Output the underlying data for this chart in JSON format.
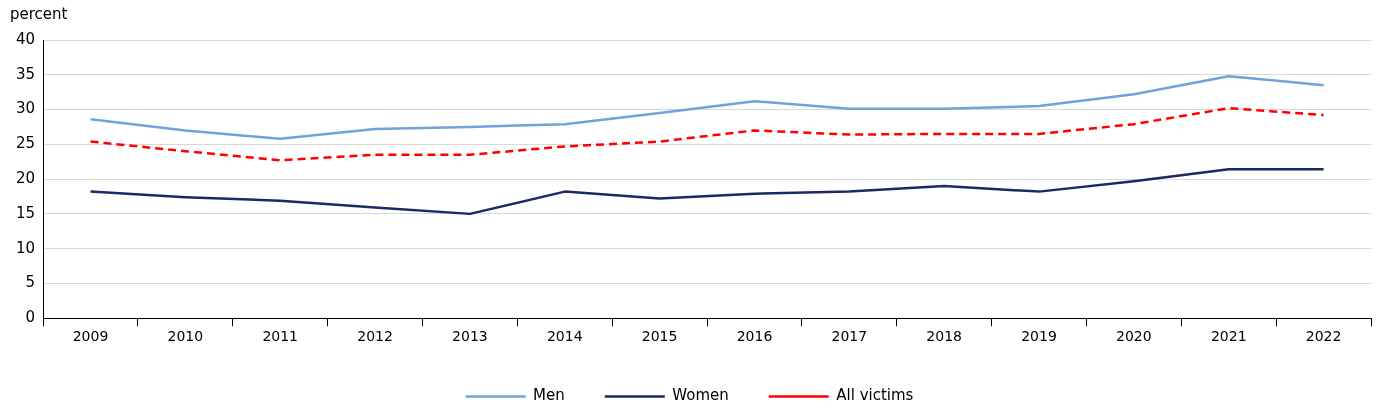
{
  "chart_data": {
    "type": "line",
    "ylabel": "percent",
    "categories": [
      "2009",
      "2010",
      "2011",
      "2012",
      "2013",
      "2014",
      "2015",
      "2016",
      "2017",
      "2018",
      "2019",
      "2020",
      "2021",
      "2022"
    ],
    "series": [
      {
        "name": "Men",
        "color": "#6fa3da",
        "values": [
          28.6,
          27,
          25.8,
          27.2,
          27.5,
          27.9,
          29.5,
          31.2,
          30.1,
          30.1,
          30.5,
          32.2,
          34.8,
          33.5
        ]
      },
      {
        "name": "Women",
        "color": "#1b2a66",
        "values": [
          18.2,
          17.4,
          16.9,
          15.9,
          15,
          18.2,
          17.2,
          17.9,
          18.2,
          19,
          18.2,
          19.7,
          21.4,
          21.4
        ]
      },
      {
        "name": "All victims",
        "color": "#ff0000",
        "line_style": "dashed",
        "values": [
          25.4,
          24,
          22.7,
          23.5,
          23.5,
          24.7,
          25.4,
          27,
          26.4,
          26.5,
          26.5,
          27.9,
          30.2,
          29.2
        ]
      }
    ],
    "ylim": [
      0,
      40
    ],
    "yticks": [
      0,
      5,
      10,
      15,
      20,
      25,
      30,
      35,
      40
    ],
    "grid": "y",
    "legend": "bottom",
    "marker": "none"
  }
}
